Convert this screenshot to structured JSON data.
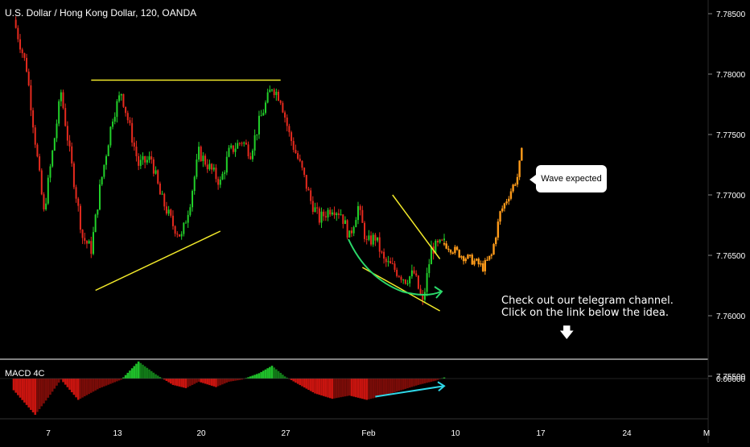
{
  "header": {
    "title": "U.S. Dollar / Hong Kong Dollar, 120, OANDA"
  },
  "macd": {
    "label": "MACD 4C",
    "zero_label": "0.00000"
  },
  "annotations": {
    "bubble_text": "Wave expected",
    "note_line1": "Check out our telegram channel.",
    "note_line2": "Click on the link below the idea."
  },
  "colors": {
    "background": "#000000",
    "candle_up": "#22d12a",
    "candle_down": "#e62a1e",
    "projection": "#ff9b1a",
    "trendline": "#f2e92a",
    "curve_arrow": "#2bd96a",
    "macd_up": "#1fbf2a",
    "macd_down": "#c9140f",
    "macd_trend": "#2fd8e8",
    "separator": "#ffffff"
  },
  "chart_data": {
    "type": "candlestick",
    "symbol": "U.S. Dollar / Hong Kong Dollar",
    "interval": "120",
    "source": "OANDA",
    "y_ticks": [
      "7.78500",
      "7.78000",
      "7.77500",
      "7.77000",
      "7.76500",
      "7.76000",
      "7.75500"
    ],
    "x_ticks": [
      "7",
      "13",
      "20",
      "27",
      "Feb",
      "10",
      "17",
      "24",
      "M"
    ],
    "close_path": [
      [
        0,
        7.7845
      ],
      [
        3,
        7.7805
      ],
      [
        7,
        7.7685
      ],
      [
        9,
        7.7735
      ],
      [
        11,
        7.7785
      ],
      [
        13,
        7.7735
      ],
      [
        16,
        7.7665
      ],
      [
        18,
        7.7655
      ],
      [
        20,
        7.7705
      ],
      [
        23,
        7.7765
      ],
      [
        25,
        7.7785
      ],
      [
        27,
        7.7755
      ],
      [
        29,
        7.7725
      ],
      [
        32,
        7.773
      ],
      [
        34,
        7.77
      ],
      [
        37,
        7.7675
      ],
      [
        39,
        7.7665
      ],
      [
        41,
        7.7695
      ],
      [
        43,
        7.7735
      ],
      [
        45,
        7.7725
      ],
      [
        48,
        7.771
      ],
      [
        50,
        7.7735
      ],
      [
        53,
        7.7745
      ],
      [
        55,
        7.7735
      ],
      [
        57,
        7.776
      ],
      [
        60,
        7.779
      ],
      [
        62,
        7.778
      ],
      [
        64,
        7.775
      ],
      [
        67,
        7.772
      ],
      [
        69,
        7.7695
      ],
      [
        71,
        7.768
      ],
      [
        74,
        7.769
      ],
      [
        76,
        7.7685
      ],
      [
        78,
        7.7665
      ],
      [
        80,
        7.769
      ],
      [
        82,
        7.766
      ],
      [
        84,
        7.7665
      ],
      [
        86,
        7.7645
      ],
      [
        88,
        7.764
      ],
      [
        91,
        7.763
      ],
      [
        93,
        7.7635
      ],
      [
        95,
        7.761
      ],
      [
        97,
        7.7655
      ],
      [
        100,
        7.766
      ]
    ],
    "projection_path": [
      [
        100,
        7.766
      ],
      [
        102,
        7.7655
      ],
      [
        104,
        7.765
      ],
      [
        107,
        7.7645
      ],
      [
        109,
        7.764
      ],
      [
        111,
        7.765
      ],
      [
        113,
        7.7685
      ],
      [
        115,
        7.77
      ],
      [
        117,
        7.7715
      ],
      [
        118,
        7.7735
      ]
    ],
    "trendlines": [
      {
        "from": [
          18,
          7.7795
        ],
        "to": [
          62,
          7.7795
        ]
      },
      {
        "from": [
          19,
          7.7621
        ],
        "to": [
          48,
          7.767
        ]
      },
      {
        "from": [
          81,
          7.764
        ],
        "to": [
          99,
          7.7604
        ]
      },
      {
        "from": [
          88,
          7.77
        ],
        "to": [
          99,
          7.7647
        ]
      }
    ],
    "macd_histogram": [
      [
        0,
        -0.00011
      ],
      [
        5,
        -0.00034
      ],
      [
        8,
        -0.00018
      ],
      [
        11,
        -1e-05
      ],
      [
        15,
        -0.0002
      ],
      [
        20,
        -9e-05
      ],
      [
        25,
        -1e-05
      ],
      [
        29,
        0.00016
      ],
      [
        33,
        4e-05
      ],
      [
        37,
        -6e-05
      ],
      [
        40,
        -9e-05
      ],
      [
        43,
        -3e-05
      ],
      [
        47,
        -8e-05
      ],
      [
        50,
        -3e-05
      ],
      [
        53,
        -1e-05
      ],
      [
        57,
        5e-05
      ],
      [
        60,
        0.00012
      ],
      [
        63,
        2e-05
      ],
      [
        66,
        -5e-05
      ],
      [
        70,
        -0.00014
      ],
      [
        74,
        -0.00019
      ],
      [
        78,
        -0.00016
      ],
      [
        82,
        -0.0002
      ],
      [
        86,
        -0.00016
      ],
      [
        90,
        -0.00011
      ],
      [
        94,
        -6e-05
      ],
      [
        98,
        -2e-05
      ],
      [
        100,
        1e-05
      ]
    ],
    "macd_trendline": {
      "from": [
        84,
        -0.00017
      ],
      "to": [
        100,
        -7e-05
      ]
    }
  }
}
